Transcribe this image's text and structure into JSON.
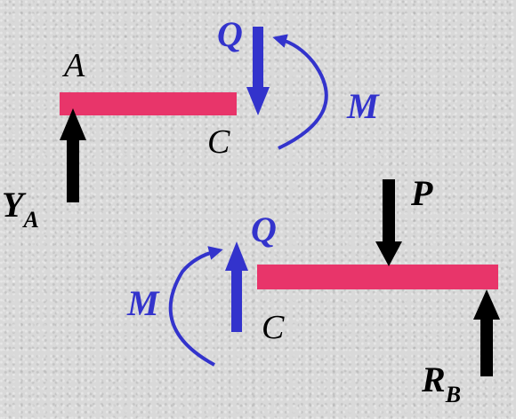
{
  "labels": {
    "left_end": "A",
    "left_cut": "C",
    "right_cut": "C",
    "shear": "Q",
    "shear_lower": "Q",
    "moment": "M",
    "moment_lower": "M",
    "load": "P",
    "reaction_left": "Y",
    "reaction_left_sub": "A",
    "reaction_right": "R",
    "reaction_right_sub": "B"
  },
  "colors": {
    "beam": "#e8356a",
    "internal_force": "#3333cc",
    "external_force": "#000000",
    "background": "#d9d9d9"
  }
}
